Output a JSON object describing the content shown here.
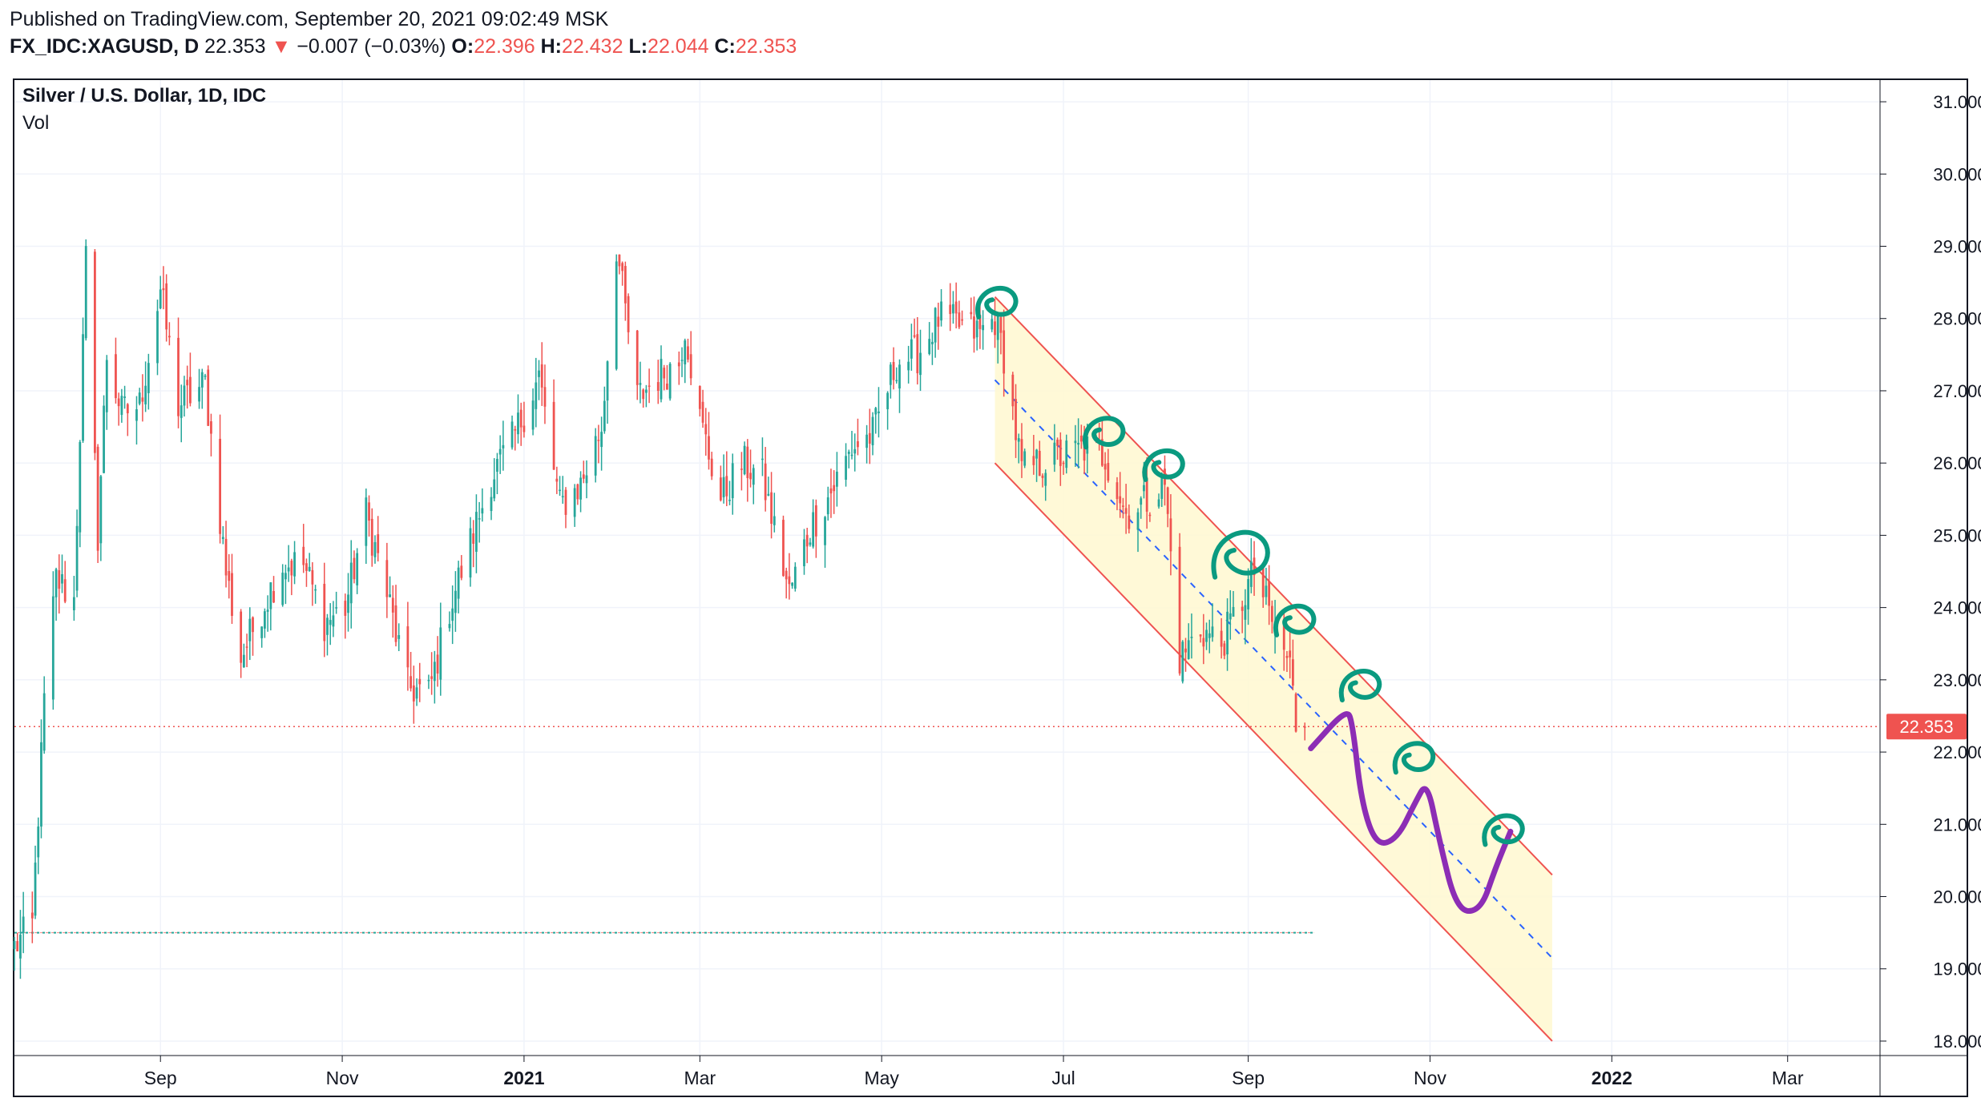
{
  "header": {
    "published": "Published on TradingView.com, September 20, 2021 09:02:49 MSK",
    "symbol": "FX_IDC:XAGUSD, D",
    "last": "22.353",
    "change_arrow": "▼",
    "change": "−0.007 (−0.03%)",
    "o_label": "O:",
    "o_value": "22.396",
    "h_label": "H:",
    "h_value": "22.432",
    "l_label": "L:",
    "l_value": "22.044",
    "c_label": "C:",
    "c_value": "22.353"
  },
  "legend": {
    "title": "Silver / U.S. Dollar, 1D, IDC",
    "volume": "Vol"
  },
  "colors": {
    "up": "#26a69a",
    "down": "#ef5350",
    "channel_line": "#ef5350",
    "channel_fill": "#fff8d0",
    "median_line": "#2962ff",
    "annotation_teal": "#0a9a80",
    "annotation_purple": "#8c2db5",
    "grid": "#f0f3fa",
    "price_label_bg": "#ef5350"
  },
  "chart_data": {
    "type": "candlestick",
    "title": "Silver / U.S. Dollar, 1D, IDC",
    "y_axis": {
      "side": "right",
      "ylim": [
        17.8,
        31.3
      ],
      "ticks": [
        "31.000",
        "30.000",
        "29.000",
        "28.000",
        "27.000",
        "26.000",
        "25.000",
        "24.000",
        "23.000",
        "22.000",
        "21.000",
        "20.000",
        "19.000",
        "18.000"
      ]
    },
    "x_axis": {
      "range": [
        "2020-07-14",
        "2022-04-01"
      ],
      "ticks": [
        {
          "label": "Sep",
          "date": "2020-09-01"
        },
        {
          "label": "Nov",
          "date": "2020-11-01"
        },
        {
          "label": "2021",
          "date": "2021-01-01"
        },
        {
          "label": "Mar",
          "date": "2021-03-01"
        },
        {
          "label": "May",
          "date": "2021-05-01"
        },
        {
          "label": "Jul",
          "date": "2021-07-01"
        },
        {
          "label": "Sep",
          "date": "2021-09-01"
        },
        {
          "label": "Nov",
          "date": "2021-11-01"
        },
        {
          "label": "2022",
          "date": "2022-01-01"
        },
        {
          "label": "Mar",
          "date": "2022-03-01"
        }
      ]
    },
    "grid": true,
    "last_price": "22.353",
    "close_anchors": [
      [
        "2020-07-14",
        19.3
      ],
      [
        "2020-07-20",
        19.6
      ],
      [
        "2020-07-24",
        22.7
      ],
      [
        "2020-07-28",
        24.4
      ],
      [
        "2020-08-03",
        24.1
      ],
      [
        "2020-08-07",
        28.8
      ],
      [
        "2020-08-11",
        25.0
      ],
      [
        "2020-08-14",
        27.5
      ],
      [
        "2020-08-19",
        26.7
      ],
      [
        "2020-08-25",
        26.8
      ],
      [
        "2020-09-01",
        28.4
      ],
      [
        "2020-09-07",
        26.8
      ],
      [
        "2020-09-16",
        27.1
      ],
      [
        "2020-09-23",
        24.5
      ],
      [
        "2020-09-28",
        23.3
      ],
      [
        "2020-10-05",
        24.0
      ],
      [
        "2020-10-12",
        24.6
      ],
      [
        "2020-10-19",
        24.6
      ],
      [
        "2020-10-26",
        23.8
      ],
      [
        "2020-11-02",
        24.0
      ],
      [
        "2020-11-09",
        25.3
      ],
      [
        "2020-11-16",
        24.2
      ],
      [
        "2020-11-23",
        22.9
      ],
      [
        "2020-11-30",
        22.8
      ],
      [
        "2020-12-07",
        24.0
      ],
      [
        "2020-12-14",
        24.9
      ],
      [
        "2020-12-21",
        25.8
      ],
      [
        "2020-12-28",
        26.3
      ],
      [
        "2021-01-06",
        27.2
      ],
      [
        "2021-01-13",
        25.4
      ],
      [
        "2021-01-20",
        25.7
      ],
      [
        "2021-01-27",
        26.5
      ],
      [
        "2021-02-01",
        29.0
      ],
      [
        "2021-02-08",
        26.9
      ],
      [
        "2021-02-15",
        27.2
      ],
      [
        "2021-02-22",
        27.4
      ],
      [
        "2021-02-24",
        27.9
      ],
      [
        "2021-03-01",
        26.6
      ],
      [
        "2021-03-08",
        25.5
      ],
      [
        "2021-03-15",
        26.0
      ],
      [
        "2021-03-22",
        25.8
      ],
      [
        "2021-03-31",
        24.2
      ],
      [
        "2021-04-07",
        25.1
      ],
      [
        "2021-04-14",
        25.6
      ],
      [
        "2021-04-21",
        26.2
      ],
      [
        "2021-04-28",
        26.4
      ],
      [
        "2021-05-06",
        27.4
      ],
      [
        "2021-05-13",
        27.5
      ],
      [
        "2021-05-20",
        28.0
      ],
      [
        "2021-05-27",
        27.9
      ],
      [
        "2021-06-03",
        27.8
      ],
      [
        "2021-06-08",
        28.0
      ],
      [
        "2021-06-11",
        27.5
      ],
      [
        "2021-06-17",
        25.9
      ],
      [
        "2021-06-24",
        26.0
      ],
      [
        "2021-07-01",
        26.1
      ],
      [
        "2021-07-08",
        26.2
      ],
      [
        "2021-07-15",
        26.1
      ],
      [
        "2021-07-22",
        25.3
      ],
      [
        "2021-07-29",
        25.5
      ],
      [
        "2021-08-04",
        25.7
      ],
      [
        "2021-08-09",
        23.3
      ],
      [
        "2021-08-16",
        23.7
      ],
      [
        "2021-08-23",
        23.5
      ],
      [
        "2021-08-30",
        24.1
      ],
      [
        "2021-09-03",
        24.5
      ],
      [
        "2021-09-10",
        23.7
      ],
      [
        "2021-09-15",
        23.2
      ],
      [
        "2021-09-17",
        22.4
      ],
      [
        "2021-09-20",
        22.35
      ]
    ],
    "annotations": {
      "channel": {
        "upper": [
          [
            "2021-06-08",
            28.3
          ],
          [
            "2021-12-12",
            20.3
          ]
        ],
        "lower": [
          [
            "2021-06-08",
            26.0
          ],
          [
            "2021-12-12",
            18.0
          ]
        ],
        "median": [
          [
            "2021-06-08",
            27.15
          ],
          [
            "2021-12-12",
            19.15
          ]
        ]
      },
      "horizontal_line_price": 19.5,
      "horizontal_line_end": "2021-09-23",
      "purple_path": [
        [
          "2021-09-22",
          22.05
        ],
        [
          "2021-10-04",
          22.6
        ],
        [
          "2021-10-06",
          22.4
        ],
        [
          "2021-10-09",
          21.3
        ],
        [
          "2021-10-14",
          20.7
        ],
        [
          "2021-10-21",
          20.8
        ],
        [
          "2021-10-27",
          21.3
        ],
        [
          "2021-10-31",
          21.6
        ],
        [
          "2021-11-04",
          20.8
        ],
        [
          "2021-11-10",
          19.8
        ],
        [
          "2021-11-18",
          19.8
        ],
        [
          "2021-11-23",
          20.4
        ],
        [
          "2021-11-28",
          20.9
        ]
      ],
      "teal_loops": [
        [
          "2021-06-09",
          28.2
        ],
        [
          "2021-07-15",
          26.4
        ],
        [
          "2021-08-04",
          25.95
        ],
        [
          "2021-08-30",
          24.7
        ],
        [
          "2021-09-17",
          23.8
        ],
        [
          "2021-10-09",
          22.9
        ],
        [
          "2021-10-27",
          21.9
        ],
        [
          "2021-11-26",
          20.9
        ]
      ]
    }
  }
}
